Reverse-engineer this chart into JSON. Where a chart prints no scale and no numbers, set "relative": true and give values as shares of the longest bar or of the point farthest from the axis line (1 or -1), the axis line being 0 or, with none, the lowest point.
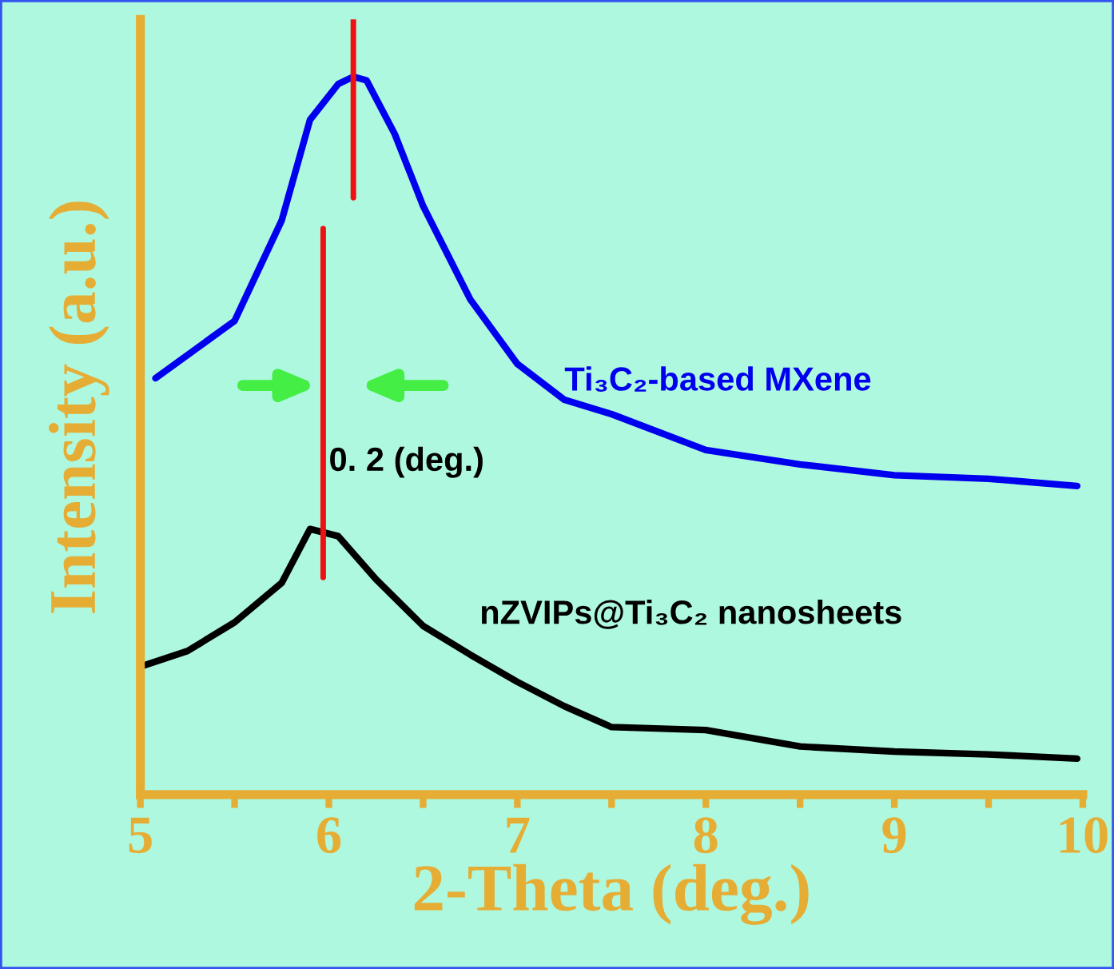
{
  "chart_data": {
    "type": "line",
    "relative": true,
    "xlabel": "2-Theta (deg.)",
    "ylabel": "Intensity (a.u.)",
    "xlim": [
      5,
      10
    ],
    "xticks": [
      5,
      {
        "value": 5.5,
        "label": null
      },
      6,
      {
        "value": 6.5,
        "label": null
      },
      7,
      {
        "value": 7.5,
        "label": null
      },
      8,
      {
        "value": 8.5,
        "label": null
      },
      9,
      {
        "value": 9.5,
        "label": null
      },
      10
    ],
    "tick_labels": "x",
    "grid": false,
    "legend": false,
    "series": [
      {
        "name": "Ti₃C₂-based MXene",
        "color": "#0000ee",
        "x": [
          5.08,
          5.5,
          5.75,
          5.9,
          6.05,
          6.13,
          6.2,
          6.35,
          6.5,
          6.75,
          7.0,
          7.25,
          7.5,
          8.0,
          8.5,
          9.0,
          9.5,
          9.97
        ],
        "values": [
          0.58,
          0.66,
          0.8,
          0.94,
          0.99,
          1.0,
          0.995,
          0.92,
          0.82,
          0.69,
          0.6,
          0.55,
          0.53,
          0.48,
          0.46,
          0.445,
          0.44,
          0.43
        ]
      },
      {
        "name": "nZVIPs@Ti₃C₂ nanosheets",
        "color": "#000000",
        "x": [
          5.02,
          5.25,
          5.5,
          5.75,
          5.9,
          6.05,
          6.25,
          6.5,
          6.75,
          7.0,
          7.25,
          7.5,
          8.0,
          8.5,
          9.0,
          9.5,
          9.97
        ],
        "values": [
          0.18,
          0.2,
          0.24,
          0.295,
          0.37,
          0.36,
          0.3,
          0.235,
          0.195,
          0.157,
          0.123,
          0.094,
          0.09,
          0.067,
          0.06,
          0.056,
          0.05
        ]
      }
    ],
    "ref_lines": [
      {
        "axis": "x",
        "value": 6.13,
        "color": "#ee1111"
      },
      {
        "axis": "x",
        "value": 5.97,
        "color": "#ee1111"
      }
    ],
    "annotations": [
      "0. 2 (deg.)"
    ]
  }
}
